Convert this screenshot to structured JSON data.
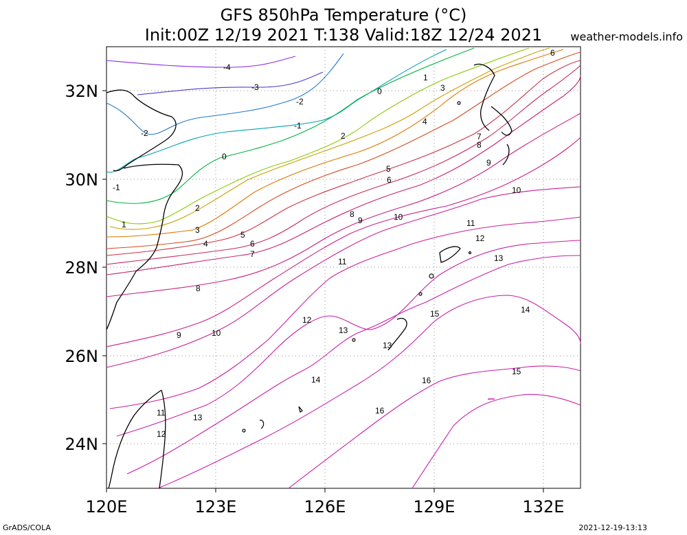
{
  "title_line1": "GFS 850hPa Temperature (°C)",
  "title_line2": "Init:00Z 12/19 2021 T:138 Valid:18Z 12/24 2021",
  "credit": "weather-models.info",
  "footer_left": "GrADS/COLA",
  "footer_right": "2021-12-19-13:13",
  "map": {
    "lon_range": [
      120,
      133
    ],
    "lat_range": [
      23,
      33
    ],
    "lon_ticks": [
      "120E",
      "123E",
      "126E",
      "129E",
      "132E"
    ],
    "lat_ticks": [
      "32N",
      "30N",
      "28N",
      "26N",
      "24N"
    ],
    "grid": "dotted",
    "variable": "850hPa temperature",
    "units": "°C"
  },
  "contour_labels": [
    "-4",
    "-3",
    "-2",
    "-2",
    "-1",
    "-1",
    "0",
    "0",
    "1",
    "1",
    "2",
    "2",
    "3",
    "3",
    "4",
    "4",
    "5",
    "5",
    "6",
    "6",
    "6",
    "7",
    "7",
    "8",
    "8",
    "8",
    "9",
    "9",
    "9",
    "10",
    "10",
    "10",
    "11",
    "11",
    "11",
    "12",
    "12",
    "12",
    "13",
    "13",
    "13",
    "13",
    "14",
    "14",
    "15",
    "15",
    "16",
    "16"
  ],
  "colors": {
    "-4": "#8a2be2",
    "-3": "#4b3cd0",
    "-2": "#1e78c8",
    "-1": "#00a0b4",
    "0": "#00b43c",
    "1": "#8cc800",
    "2": "#c8a000",
    "3": "#dc7800",
    "4": "#d24b1e",
    "5": "#c83246",
    "6": "#c8285a",
    "7": "#c81e6e",
    "8": "#c81e82",
    "9": "#c81e8c",
    "10": "#c81e96",
    "11": "#c81e9b",
    "12": "#c81ea0",
    "13": "#c81ea5",
    "14": "#c81eaa",
    "15": "#c81eaa",
    "16": "#c81eaa",
    "coastline": "#000000"
  }
}
